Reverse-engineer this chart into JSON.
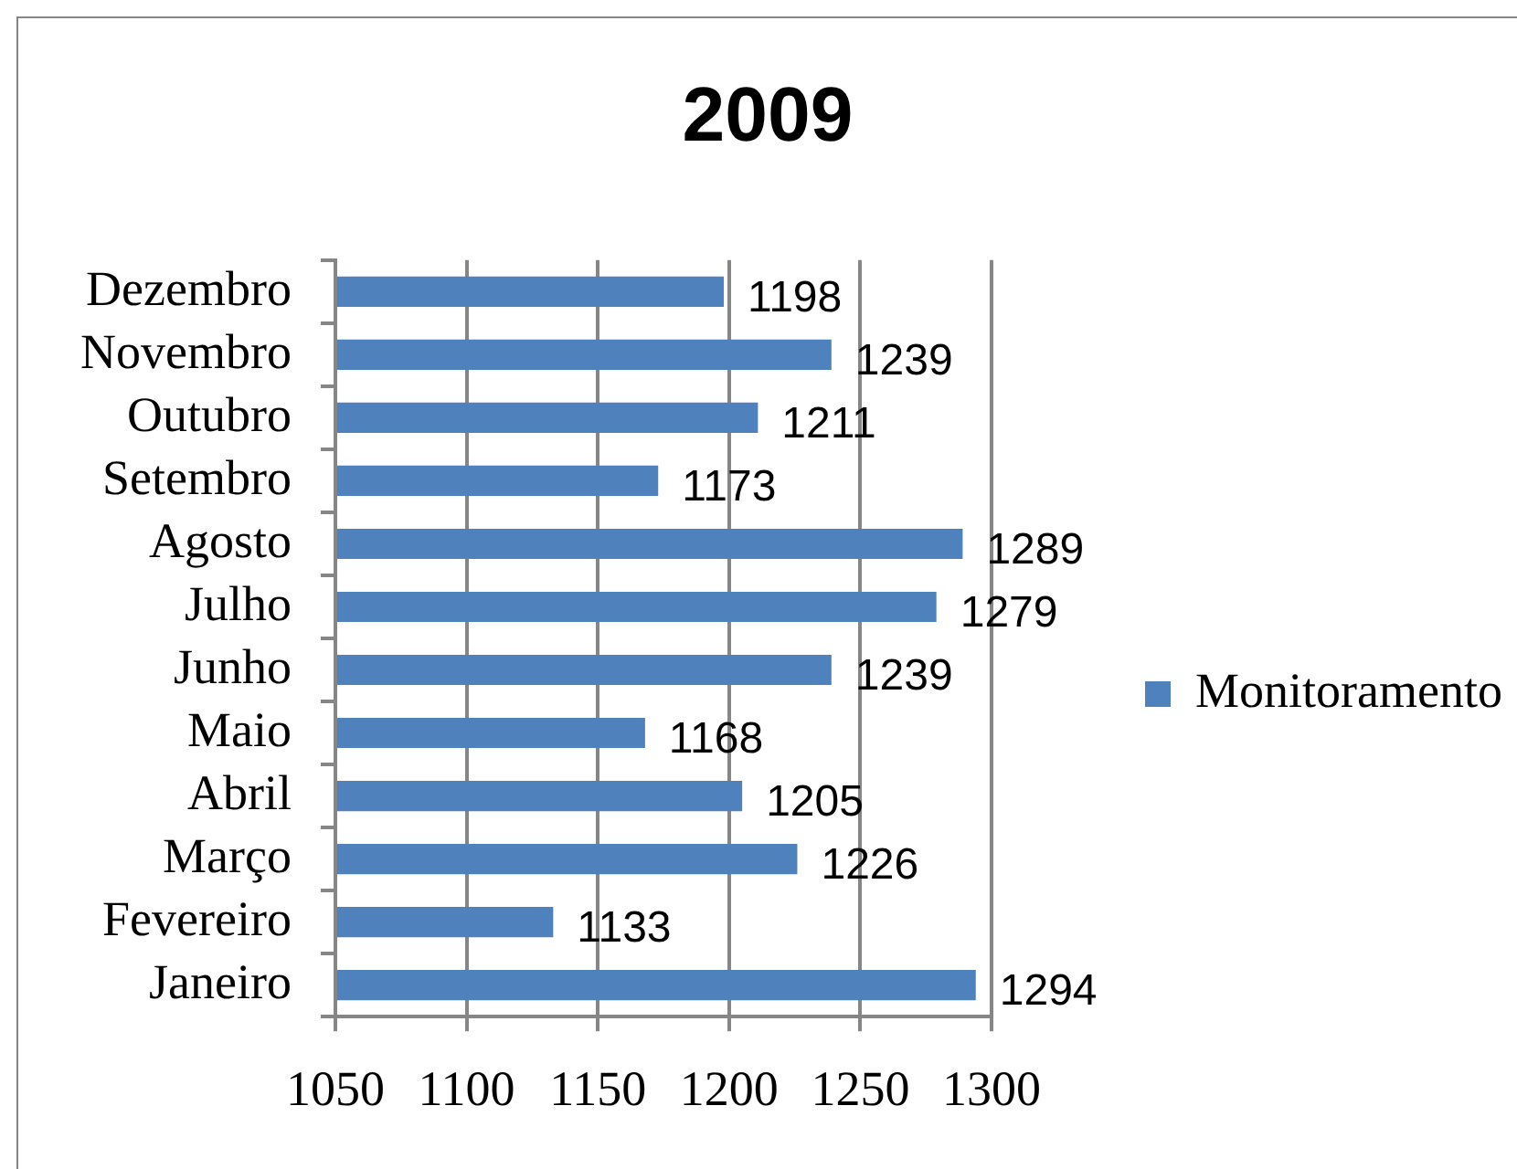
{
  "chart_data": {
    "type": "bar",
    "orientation": "horizontal",
    "title": "2009",
    "categories": [
      "Dezembro",
      "Novembro",
      "Outubro",
      "Setembro",
      "Agosto",
      "Julho",
      "Junho",
      "Maio",
      "Abril",
      "Março",
      "Fevereiro",
      "Janeiro"
    ],
    "series": [
      {
        "name": "Monitoramento",
        "color": "#4f81bd",
        "values": [
          1198,
          1239,
          1211,
          1173,
          1289,
          1279,
          1239,
          1168,
          1205,
          1226,
          1133,
          1294
        ]
      }
    ],
    "xlim": [
      1050,
      1300
    ],
    "xticks": [
      1050,
      1100,
      1150,
      1200,
      1250,
      1300
    ],
    "grid": "x",
    "legend": "right",
    "data_labels": true
  }
}
